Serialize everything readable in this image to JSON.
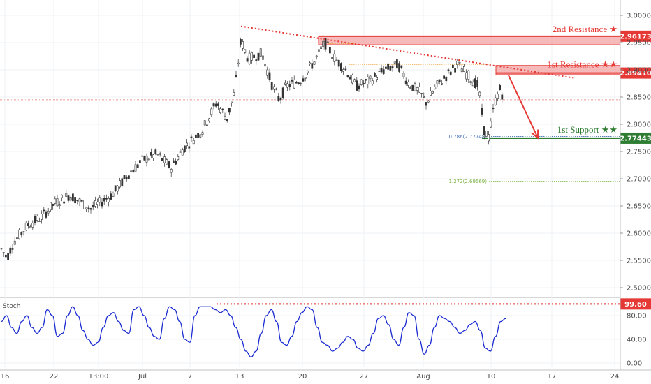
{
  "chart_data": {
    "type": "candlestick",
    "price_axis": {
      "min": 2.5,
      "max": 3.0,
      "ticks": [
        "3.00000",
        "2.95000",
        "2.90000",
        "2.85000",
        "2.80000",
        "2.75000",
        "2.70000",
        "2.65000",
        "2.60000",
        "2.55000",
        "2.50000"
      ]
    },
    "x_axis": {
      "ticks": [
        "16",
        "22",
        "13:00",
        "Jul",
        "7",
        "13",
        "20",
        "27",
        "Aug",
        "10",
        "17",
        "24"
      ]
    },
    "current_price": 2.845,
    "levels": [
      {
        "name": "2nd Resistance ★",
        "value": "2.96173",
        "price": 2.96173,
        "zone_low": 2.946,
        "zone_high": 2.962,
        "color": "#e53935"
      },
      {
        "name": "1st Resistance ★★",
        "value": "2.89410",
        "price": 2.8941,
        "zone_low": 2.891,
        "zone_high": 2.908,
        "color": "#e53935"
      },
      {
        "name": "1st Support ★★",
        "value": "2.77443",
        "price": 2.77443,
        "color": "#2e7d32"
      }
    ],
    "fib_levels": [
      {
        "label": "0.786(2.77748)",
        "price": 2.77748,
        "color": "#3f6fb5"
      },
      {
        "label": "1.272(2.69569)",
        "price": 2.69569,
        "color": "#7cb342"
      }
    ],
    "trendline": {
      "from_date": "Jul 13",
      "from_price": 2.98,
      "to_price": 2.89
    },
    "arrow": {
      "from_price": 2.89,
      "to_price": 2.775
    },
    "stochastic": {
      "title": "Stoch",
      "ticks": [
        "80.00",
        "40.00",
        "0.00"
      ],
      "level_value": "99.60",
      "level": 99.6,
      "values": [
        70,
        80,
        60,
        50,
        70,
        80,
        60,
        50,
        60,
        90,
        80,
        45,
        50,
        80,
        95,
        80,
        55,
        40,
        30,
        35,
        60,
        80,
        85,
        70,
        55,
        50,
        90,
        95,
        80,
        60,
        45,
        40,
        75,
        95,
        90,
        70,
        40,
        35,
        80,
        95,
        100,
        95,
        90,
        85,
        90,
        80,
        60,
        40,
        20,
        10,
        20,
        50,
        80,
        90,
        70,
        35,
        30,
        45,
        70,
        85,
        95,
        90,
        60,
        35,
        30,
        20,
        25,
        35,
        45,
        40,
        25,
        20,
        30,
        50,
        75,
        80,
        65,
        40,
        30,
        60,
        85,
        80,
        40,
        15,
        30,
        60,
        80,
        75,
        70,
        60,
        50,
        55,
        65,
        70,
        55,
        25,
        20,
        45,
        70,
        75
      ]
    }
  }
}
